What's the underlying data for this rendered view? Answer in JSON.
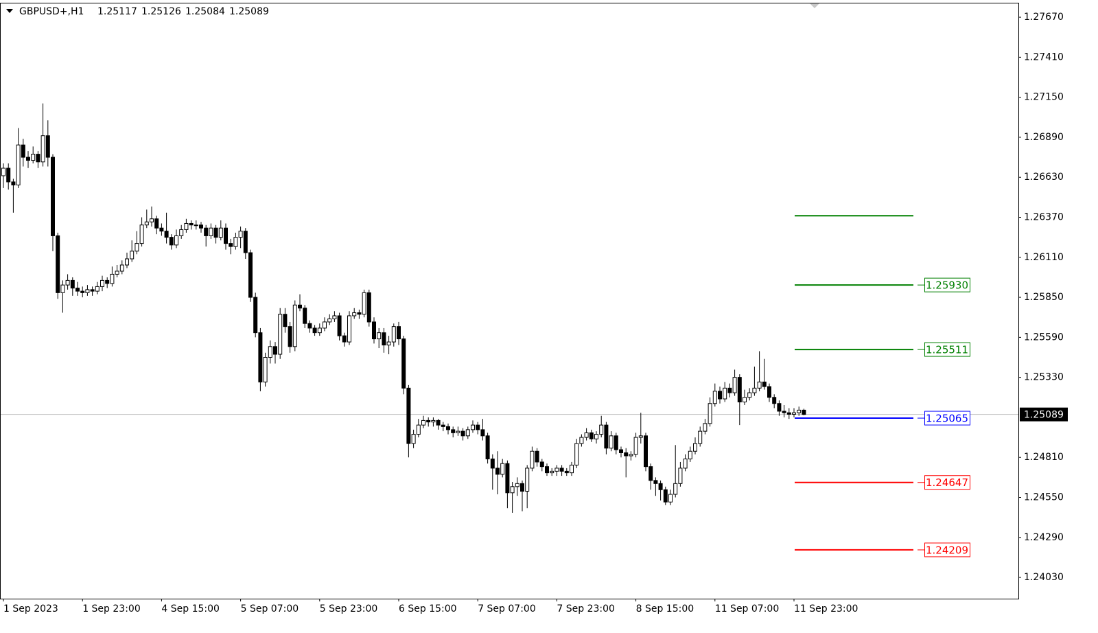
{
  "chart_data": {
    "type": "candlestick",
    "symbol": "GBPUSD+,H1",
    "candles": [
      [
        1.2664,
        1.2672,
        1.2656,
        1.26689
      ],
      [
        1.26689,
        1.2672,
        1.2655,
        1.266
      ],
      [
        1.266,
        1.2662,
        1.264,
        1.2658
      ],
      [
        1.2658,
        1.2695,
        1.2656,
        1.2684
      ],
      [
        1.2684,
        1.2688,
        1.267,
        1.2676
      ],
      [
        1.2676,
        1.268,
        1.2669,
        1.2674
      ],
      [
        1.2674,
        1.2683,
        1.2672,
        1.2678
      ],
      [
        1.2678,
        1.268,
        1.2669,
        1.2673
      ],
      [
        1.2673,
        1.2711,
        1.267,
        1.269
      ],
      [
        1.269,
        1.27,
        1.267,
        1.2676
      ],
      [
        1.2676,
        1.2678,
        1.2615,
        1.2625
      ],
      [
        1.2625,
        1.2627,
        1.2584,
        1.2588
      ],
      [
        1.2588,
        1.2596,
        1.2575,
        1.2593
      ],
      [
        1.2593,
        1.26,
        1.259,
        1.2596
      ],
      [
        1.2596,
        1.2598,
        1.2586,
        1.2591
      ],
      [
        1.2591,
        1.2595,
        1.2586,
        1.2589
      ],
      [
        1.2589,
        1.2592,
        1.2585,
        1.2588
      ],
      [
        1.2588,
        1.2593,
        1.2586,
        1.259
      ],
      [
        1.259,
        1.2592,
        1.2586,
        1.2589
      ],
      [
        1.2589,
        1.2595,
        1.2587,
        1.2592
      ],
      [
        1.2592,
        1.2599,
        1.2589,
        1.2596
      ],
      [
        1.2596,
        1.2598,
        1.2591,
        1.2594
      ],
      [
        1.2594,
        1.2605,
        1.2592,
        1.26
      ],
      [
        1.26,
        1.2606,
        1.2598,
        1.2602
      ],
      [
        1.2602,
        1.2609,
        1.26,
        1.2606
      ],
      [
        1.2606,
        1.2614,
        1.2604,
        1.261
      ],
      [
        1.261,
        1.2622,
        1.2608,
        1.2615
      ],
      [
        1.2615,
        1.2628,
        1.2613,
        1.262
      ],
      [
        1.262,
        1.2637,
        1.2618,
        1.2632
      ],
      [
        1.2632,
        1.2642,
        1.263,
        1.2634
      ],
      [
        1.2634,
        1.2644,
        1.2631,
        1.2636
      ],
      [
        1.2636,
        1.2638,
        1.2626,
        1.263
      ],
      [
        1.263,
        1.2633,
        1.2625,
        1.2628
      ],
      [
        1.2628,
        1.264,
        1.262,
        1.2624
      ],
      [
        1.2624,
        1.2626,
        1.2616,
        1.2619
      ],
      [
        1.2619,
        1.2629,
        1.2617,
        1.2625
      ],
      [
        1.2625,
        1.2632,
        1.2623,
        1.2629
      ],
      [
        1.2629,
        1.2636,
        1.2627,
        1.2633
      ],
      [
        1.2633,
        1.2635,
        1.2629,
        1.2632
      ],
      [
        1.2632,
        1.2635,
        1.2629,
        1.2632
      ],
      [
        1.2632,
        1.2634,
        1.2627,
        1.263
      ],
      [
        1.263,
        1.2632,
        1.2618,
        1.2625
      ],
      [
        1.2625,
        1.2633,
        1.2623,
        1.263
      ],
      [
        1.263,
        1.2632,
        1.262,
        1.2624
      ],
      [
        1.2624,
        1.2635,
        1.2622,
        1.263
      ],
      [
        1.263,
        1.2633,
        1.2616,
        1.262
      ],
      [
        1.262,
        1.2623,
        1.2613,
        1.2618
      ],
      [
        1.2618,
        1.2627,
        1.2616,
        1.2624
      ],
      [
        1.2624,
        1.2631,
        1.2617,
        1.2628
      ],
      [
        1.2628,
        1.263,
        1.261,
        1.2614
      ],
      [
        1.2614,
        1.2616,
        1.2582,
        1.2585
      ],
      [
        1.2585,
        1.2588,
        1.2559,
        1.2562
      ],
      [
        1.2562,
        1.2565,
        1.2524,
        1.253
      ],
      [
        1.253,
        1.2549,
        1.2527,
        1.2546
      ],
      [
        1.2546,
        1.2557,
        1.2542,
        1.2553
      ],
      [
        1.2553,
        1.2556,
        1.2542,
        1.2548
      ],
      [
        1.2548,
        1.2578,
        1.2545,
        1.2574
      ],
      [
        1.2574,
        1.2578,
        1.2562,
        1.2566
      ],
      [
        1.2566,
        1.2569,
        1.2549,
        1.2553
      ],
      [
        1.2553,
        1.2583,
        1.255,
        1.258
      ],
      [
        1.258,
        1.2587,
        1.2576,
        1.2578
      ],
      [
        1.2578,
        1.258,
        1.2565,
        1.2568
      ],
      [
        1.2568,
        1.257,
        1.2562,
        1.2565
      ],
      [
        1.2565,
        1.2567,
        1.256,
        1.2562
      ],
      [
        1.2562,
        1.2568,
        1.256,
        1.2565
      ],
      [
        1.2565,
        1.2572,
        1.2563,
        1.2569
      ],
      [
        1.2569,
        1.2574,
        1.2567,
        1.2571
      ],
      [
        1.2571,
        1.2576,
        1.2569,
        1.2573
      ],
      [
        1.2573,
        1.2575,
        1.2557,
        1.256
      ],
      [
        1.256,
        1.2562,
        1.2553,
        1.2556
      ],
      [
        1.2556,
        1.2576,
        1.2554,
        1.2573
      ],
      [
        1.2573,
        1.2578,
        1.2571,
        1.2575
      ],
      [
        1.2575,
        1.2577,
        1.2571,
        1.2574
      ],
      [
        1.2574,
        1.259,
        1.2572,
        1.2588
      ],
      [
        1.2588,
        1.259,
        1.2566,
        1.2569
      ],
      [
        1.2569,
        1.2572,
        1.2555,
        1.2558
      ],
      [
        1.2558,
        1.2565,
        1.2552,
        1.2562
      ],
      [
        1.2562,
        1.2565,
        1.2549,
        1.2554
      ],
      [
        1.2554,
        1.256,
        1.2548,
        1.2556
      ],
      [
        1.2556,
        1.2568,
        1.2553,
        1.2566
      ],
      [
        1.2566,
        1.2569,
        1.2554,
        1.2558
      ],
      [
        1.2558,
        1.256,
        1.2522,
        1.2526
      ],
      [
        1.2526,
        1.2528,
        1.2481,
        1.249
      ],
      [
        1.249,
        1.2499,
        1.2487,
        1.2496
      ],
      [
        1.2496,
        1.2506,
        1.2494,
        1.2502
      ],
      [
        1.2502,
        1.2508,
        1.25,
        1.2505
      ],
      [
        1.2505,
        1.2507,
        1.2501,
        1.2504
      ],
      [
        1.2504,
        1.2507,
        1.2501,
        1.2505
      ],
      [
        1.2505,
        1.2506,
        1.2499,
        1.2502
      ],
      [
        1.2502,
        1.2504,
        1.2498,
        1.2501
      ],
      [
        1.2501,
        1.2503,
        1.2496,
        1.2499
      ],
      [
        1.2499,
        1.2501,
        1.2494,
        1.2497
      ],
      [
        1.2497,
        1.2501,
        1.2495,
        1.2498
      ],
      [
        1.2498,
        1.25,
        1.2492,
        1.2495
      ],
      [
        1.2495,
        1.2501,
        1.2493,
        1.2499
      ],
      [
        1.2499,
        1.2505,
        1.2497,
        1.2502
      ],
      [
        1.2502,
        1.2504,
        1.2496,
        1.2499
      ],
      [
        1.2499,
        1.2506,
        1.2492,
        1.2495
      ],
      [
        1.2495,
        1.2497,
        1.2477,
        1.248
      ],
      [
        1.248,
        1.2483,
        1.246,
        1.2474
      ],
      [
        1.2474,
        1.2485,
        1.2457,
        1.247
      ],
      [
        1.247,
        1.248,
        1.2468,
        1.2477
      ],
      [
        1.2477,
        1.2479,
        1.2448,
        1.2458
      ],
      [
        1.2458,
        1.2465,
        1.2445,
        1.2462
      ],
      [
        1.2462,
        1.2468,
        1.2456,
        1.2464
      ],
      [
        1.2464,
        1.2466,
        1.2446,
        1.2459
      ],
      [
        1.2459,
        1.2476,
        1.2448,
        1.2474
      ],
      [
        1.2474,
        1.2488,
        1.2472,
        1.2485
      ],
      [
        1.2485,
        1.2487,
        1.2475,
        1.2478
      ],
      [
        1.2478,
        1.248,
        1.2472,
        1.2475
      ],
      [
        1.2475,
        1.2477,
        1.2469,
        1.2471
      ],
      [
        1.2471,
        1.2474,
        1.2469,
        1.2472
      ],
      [
        1.2472,
        1.2476,
        1.2469,
        1.2474
      ],
      [
        1.2474,
        1.2476,
        1.2469,
        1.2472
      ],
      [
        1.2472,
        1.2474,
        1.2469,
        1.2471
      ],
      [
        1.2471,
        1.2478,
        1.2469,
        1.2476
      ],
      [
        1.2476,
        1.2493,
        1.2474,
        1.249
      ],
      [
        1.249,
        1.2496,
        1.2488,
        1.2494
      ],
      [
        1.2494,
        1.25,
        1.2492,
        1.2497
      ],
      [
        1.2497,
        1.2499,
        1.2491,
        1.2493
      ],
      [
        1.2493,
        1.2498,
        1.249,
        1.2496
      ],
      [
        1.2496,
        1.2508,
        1.2494,
        1.2502
      ],
      [
        1.2502,
        1.2504,
        1.2483,
        1.2487
      ],
      [
        1.2487,
        1.2498,
        1.2485,
        1.2495
      ],
      [
        1.2495,
        1.2497,
        1.2483,
        1.2486
      ],
      [
        1.2486,
        1.2488,
        1.2481,
        1.2484
      ],
      [
        1.2484,
        1.2487,
        1.2468,
        1.2482
      ],
      [
        1.2482,
        1.2485,
        1.2479,
        1.2483
      ],
      [
        1.2483,
        1.2497,
        1.2481,
        1.2494
      ],
      [
        1.2494,
        1.251,
        1.249,
        1.2495
      ],
      [
        1.2495,
        1.2497,
        1.2472,
        1.2475
      ],
      [
        1.2475,
        1.2477,
        1.246,
        1.2466
      ],
      [
        1.2466,
        1.2468,
        1.2456,
        1.2464
      ],
      [
        1.2464,
        1.2466,
        1.2453,
        1.246
      ],
      [
        1.246,
        1.2462,
        1.245,
        1.2452
      ],
      [
        1.2452,
        1.246,
        1.245,
        1.2457
      ],
      [
        1.2457,
        1.2489,
        1.2455,
        1.2464
      ],
      [
        1.2464,
        1.2478,
        1.2462,
        1.2474
      ],
      [
        1.2474,
        1.2483,
        1.2472,
        1.248
      ],
      [
        1.248,
        1.2488,
        1.2478,
        1.2485
      ],
      [
        1.2485,
        1.2494,
        1.2483,
        1.249
      ],
      [
        1.249,
        1.2501,
        1.2488,
        1.2498
      ],
      [
        1.2498,
        1.2506,
        1.2496,
        1.2503
      ],
      [
        1.2503,
        1.252,
        1.2501,
        1.2516
      ],
      [
        1.2516,
        1.2529,
        1.2514,
        1.2524
      ],
      [
        1.2524,
        1.2527,
        1.2516,
        1.2519
      ],
      [
        1.2519,
        1.253,
        1.2517,
        1.2526
      ],
      [
        1.2526,
        1.2529,
        1.252,
        1.2523
      ],
      [
        1.2523,
        1.2538,
        1.2521,
        1.2533
      ],
      [
        1.2533,
        1.2535,
        1.2502,
        1.2517
      ],
      [
        1.2517,
        1.2525,
        1.2515,
        1.252
      ],
      [
        1.252,
        1.2526,
        1.2518,
        1.2523
      ],
      [
        1.2523,
        1.254,
        1.2521,
        1.2526
      ],
      [
        1.2526,
        1.255,
        1.2524,
        1.253
      ],
      [
        1.253,
        1.2545,
        1.2525,
        1.2527
      ],
      [
        1.2527,
        1.2529,
        1.2517,
        1.252
      ],
      [
        1.252,
        1.2522,
        1.2513,
        1.2516
      ],
      [
        1.2516,
        1.2518,
        1.2508,
        1.2511
      ],
      [
        1.2511,
        1.2515,
        1.2507,
        1.251
      ],
      [
        1.251,
        1.2513,
        1.2506,
        1.2509
      ],
      [
        1.2509,
        1.2513,
        1.2507,
        1.251
      ],
      [
        1.251,
        1.2514,
        1.2508,
        1.25117
      ],
      [
        1.25117,
        1.25126,
        1.25084,
        1.25089
      ]
    ],
    "ylim": [
      1.23892,
      1.27764
    ],
    "yticks": [
      {
        "value": 1.2767,
        "label": "1.27670"
      },
      {
        "value": 1.2741,
        "label": "1.27410"
      },
      {
        "value": 1.2715,
        "label": "1.27150"
      },
      {
        "value": 1.2689,
        "label": "1.26890"
      },
      {
        "value": 1.2663,
        "label": "1.26630"
      },
      {
        "value": 1.2637,
        "label": "1.26370"
      },
      {
        "value": 1.2611,
        "label": "1.26110"
      },
      {
        "value": 1.2585,
        "label": "1.25850"
      },
      {
        "value": 1.2559,
        "label": "1.25590"
      },
      {
        "value": 1.2533,
        "label": "1.25330"
      },
      {
        "value": 1.2481,
        "label": "1.24810"
      },
      {
        "value": 1.2455,
        "label": "1.24550"
      },
      {
        "value": 1.2429,
        "label": "1.24290"
      },
      {
        "value": 1.2403,
        "label": "1.24030"
      }
    ],
    "xticks": [
      {
        "value": 0,
        "label": "1 Sep 2023"
      },
      {
        "value": 16,
        "label": "1 Sep 23:00"
      },
      {
        "value": 32,
        "label": "4 Sep 15:00"
      },
      {
        "value": 48,
        "label": "5 Sep 07:00"
      },
      {
        "value": 64,
        "label": "5 Sep 23:00"
      },
      {
        "value": 80,
        "label": "6 Sep 15:00"
      },
      {
        "value": 96,
        "label": "7 Sep 07:00"
      },
      {
        "value": 112,
        "label": "7 Sep 23:00"
      },
      {
        "value": 128,
        "label": "8 Sep 15:00"
      },
      {
        "value": 144,
        "label": "11 Sep 07:00"
      },
      {
        "value": 160,
        "label": "11 Sep 23:00"
      }
    ],
    "current_price": 1.25089,
    "levels": [
      {
        "value": 1.2638,
        "color": "#008000"
      },
      {
        "value": 1.2593,
        "label": "1.25930",
        "color": "#008000"
      },
      {
        "value": 1.25511,
        "color": "#008000"
      },
      {
        "value": 1.25065,
        "color": "#0000ff"
      },
      {
        "value": 1.24647,
        "color": "#ff0000"
      },
      {
        "value": 1.24209,
        "color": "#ff0000"
      }
    ]
  }
}
